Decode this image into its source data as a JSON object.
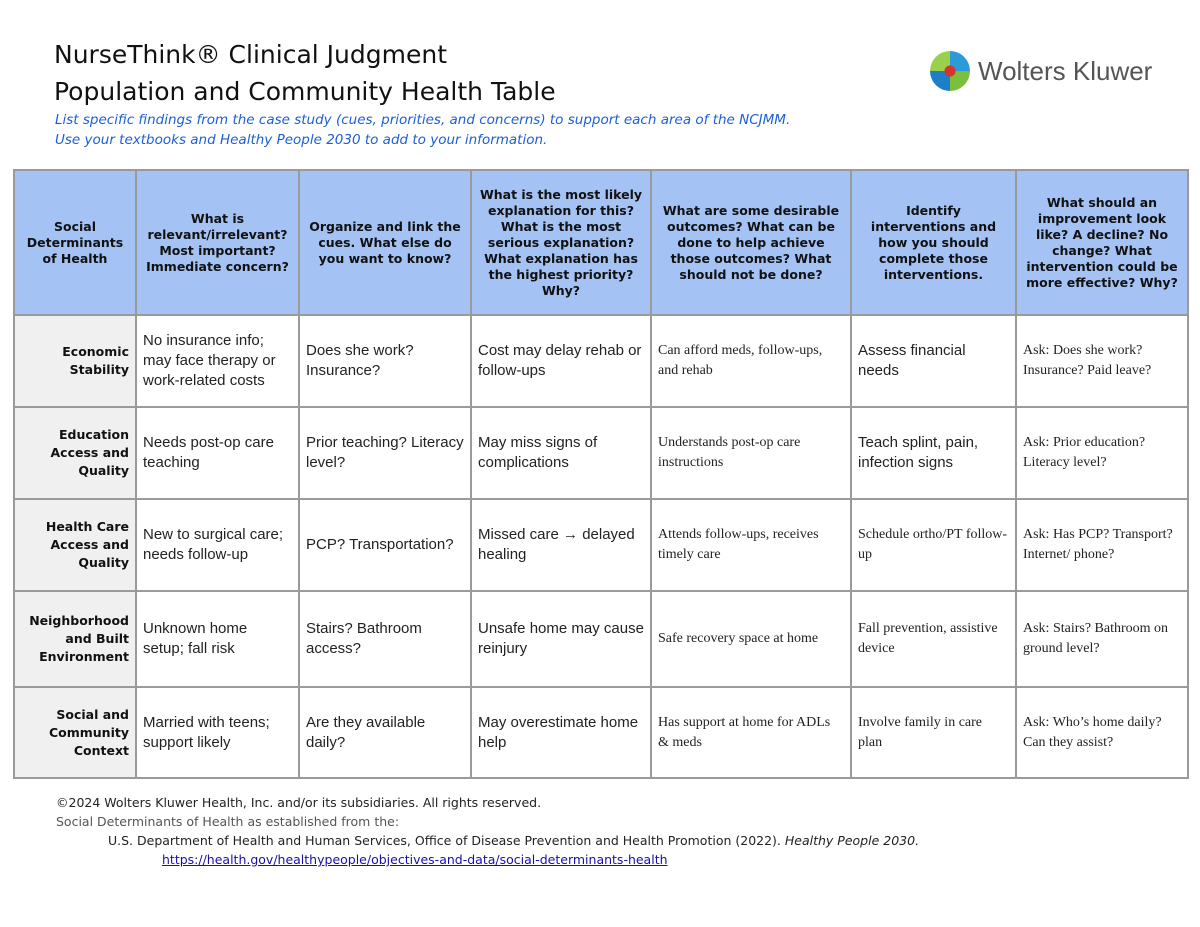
{
  "header": {
    "title_line1": "NurseThink® Clinical Judgment",
    "title_line2": "Population and Community Health Table",
    "instructions_line1": "List specific findings from the case study (cues, priorities, and concerns) to support each area of the NCJMM.",
    "instructions_line2": "Use your textbooks and Healthy People 2030 to add to your information.",
    "logo": "Wolters Kluwer"
  },
  "table": {
    "columns": [
      "Social Determinants of Health",
      "What is relevant/irrelevant? Most important? Immediate concern?",
      "Organize and link the cues. What else do you want to know?",
      "What is the most likely explanation for this? What is the most serious explanation? What explanation has the highest priority? Why?",
      "What are some desirable outcomes? What can be done to help achieve those outcomes? What should not be done?",
      "Identify interventions and how you should complete those interventions.",
      "What should an improvement look like? A decline? No change? What intervention could be more effective? Why?"
    ],
    "rows": [
      {
        "label": "Economic Stability",
        "cells": [
          "No insurance info; may face therapy or work-related costs",
          "Does she work? Insurance?",
          "Cost may delay rehab or follow-ups",
          "Can afford meds, follow-ups, and rehab",
          "Assess financial needs",
          "Ask: Does she work? Insurance? Paid leave?"
        ]
      },
      {
        "label": "Education Access and Quality",
        "cells": [
          "Needs post-op care teaching",
          "Prior teaching? Literacy level?",
          "May miss signs of complications",
          "Understands post-op care instructions",
          "Teach splint, pain, infection signs",
          "Ask: Prior education? Literacy level?"
        ]
      },
      {
        "label": "Health Care Access and Quality",
        "cells": [
          "New to surgical care; needs follow-up",
          "PCP? Transportation?",
          "Missed care → delayed healing",
          "Attends follow-ups, receives timely care",
          "Schedule ortho/PT follow-up",
          "Ask: Has PCP? Transport? Internet/ phone?"
        ]
      },
      {
        "label": "Neighborhood and Built Environment",
        "cells": [
          "Unknown home setup; fall risk",
          "Stairs? Bathroom access?",
          "Unsafe home may cause reinjury",
          "Safe recovery space at home",
          "Fall prevention, assistive device",
          "Ask: Stairs? Bathroom on ground level?"
        ]
      },
      {
        "label": "Social and Community Context",
        "cells": [
          "Married with teens; support likely",
          "Are they available daily?",
          "May overestimate home help",
          "Has support at home for ADLs & meds",
          "Involve family in care plan",
          "Ask: Who’s home daily? Can they assist?"
        ]
      }
    ]
  },
  "footer": {
    "copyright": "©2024 Wolters Kluwer Health, Inc. and/or its subsidiaries. All rights reserved.",
    "source_intro": "Social Determinants of Health as established from the:",
    "citation": "U.S. Department of Health and Human Services, Office of Disease Prevention and Health Promotion (2022).",
    "citation_title": "Healthy People 2030.",
    "link": "https://health.gov/healthypeople/objectives-and-data/social-determinants-health"
  }
}
